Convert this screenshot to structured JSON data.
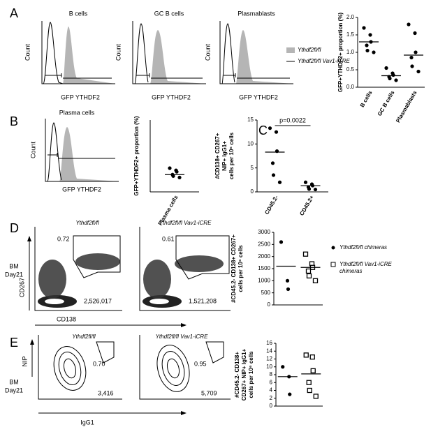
{
  "figure": {
    "letters": [
      "A",
      "B",
      "C",
      "D",
      "E"
    ],
    "hist_titles": [
      "B cells",
      "GC B cells",
      "Plasmablasts",
      "Plasma cells"
    ],
    "count_label": "Count",
    "gfp_label": "GFP YTHDF2",
    "hist_legend": [
      "Ythdf2fl/fl",
      "Ythdf2fl/fl Vav1-iCRE"
    ],
    "flow_titles": [
      "Ythdf2fl/fl",
      "Ythdf2fl/fl Vav1-iCRE"
    ],
    "bm_day": [
      "BM",
      "Day21"
    ],
    "d_axes": [
      "CD267",
      "CD138"
    ],
    "d_numbers": [
      [
        "0.72",
        "2,526,017"
      ],
      [
        "0.61",
        "1,521,208"
      ]
    ],
    "e_axes": [
      "NIP",
      "IgG1"
    ],
    "e_numbers": [
      [
        "0.70",
        "3,416"
      ],
      [
        "0.95",
        "5,709"
      ]
    ]
  },
  "chart_data": [
    {
      "type": "dot",
      "ylabel": [
        "GFP+YTHDF2+ proportion (%)"
      ],
      "categories": [
        "B cells",
        "GC B cells",
        "Plasmablasts"
      ],
      "groups": [
        {
          "marker": "circle",
          "values": [
            1.7,
            1.5,
            1.3,
            1.2,
            1.05,
            1.0
          ],
          "line": 1.3
        },
        {
          "marker": "circle",
          "values": [
            0.55,
            0.4,
            0.35,
            0.3,
            0.25,
            0.2
          ],
          "line": 0.33
        },
        {
          "marker": "circle",
          "values": [
            1.8,
            1.55,
            1.0,
            0.85,
            0.6,
            0.45
          ],
          "line": 0.92
        }
      ],
      "ylim": [
        0,
        2
      ],
      "yticks": [
        {
          "value": 0,
          "label": "0.0"
        },
        0.5,
        {
          "value": 1,
          "label": "1.0"
        },
        1.5,
        {
          "value": 2,
          "label": "2.0"
        }
      ]
    },
    {
      "type": "dot",
      "ylabel": [
        "GFP+YTHDF2+ proportion (%)"
      ],
      "categories": [
        "Plasma cells"
      ],
      "groups": [
        {
          "marker": "circle",
          "values": [
            33,
            30,
            28,
            24,
            22,
            20
          ],
          "line": 24
        }
      ],
      "ylim": [
        0,
        100
      ]
    },
    {
      "type": "dot",
      "ylabel": [
        "#CD138+ CD267+",
        "NIP+ IgG1+",
        "cells per 10⁶ cells"
      ],
      "categories": [
        "CD45.2-",
        "CD45.2+"
      ],
      "annotation": "p=0.0022",
      "groups": [
        {
          "marker": "circle",
          "values": [
            13.3,
            12.5,
            8.5,
            6,
            3.5,
            2
          ],
          "line": 8.3
        },
        {
          "marker": "circle",
          "values": [
            2,
            1.6,
            1.3,
            1,
            0.6,
            0.5
          ],
          "line": 1.3
        }
      ],
      "ylim": [
        0,
        15
      ],
      "yticks": [
        0,
        5,
        10,
        15
      ]
    },
    {
      "type": "dot",
      "ylabel": [
        "#CD45.2- CD138+ CD267+",
        "cells per 10⁶ cells"
      ],
      "groups": [
        {
          "name": "Ythdf2fl/fl chimeras",
          "marker": "circle",
          "values": [
            2600,
            1000,
            650
          ],
          "line": 1600
        },
        {
          "name": "Ythdf2fl/fl Vav1-iCRE chimeras",
          "marker": "square",
          "values": [
            2100,
            1700,
            1550,
            1400,
            1200,
            1000
          ],
          "line": 1550
        }
      ],
      "ylim": [
        0,
        3000
      ],
      "yticks": [
        0,
        500,
        1000,
        1500,
        2000,
        2500,
        3000
      ]
    },
    {
      "type": "dot",
      "ylabel": [
        "#CD45.2- CD138+",
        "CD267+ NIP+ IgG1+",
        "cells per 10⁶ cells"
      ],
      "groups": [
        {
          "marker": "circle",
          "values": [
            10,
            7.5,
            3
          ],
          "line": 7.5
        },
        {
          "marker": "square",
          "values": [
            13,
            12.5,
            9,
            6,
            4,
            2.5
          ],
          "line": 8.2
        }
      ],
      "ylim": [
        0,
        16
      ],
      "yticks": [
        0,
        2,
        4,
        6,
        8,
        10,
        12,
        14,
        16
      ]
    }
  ]
}
